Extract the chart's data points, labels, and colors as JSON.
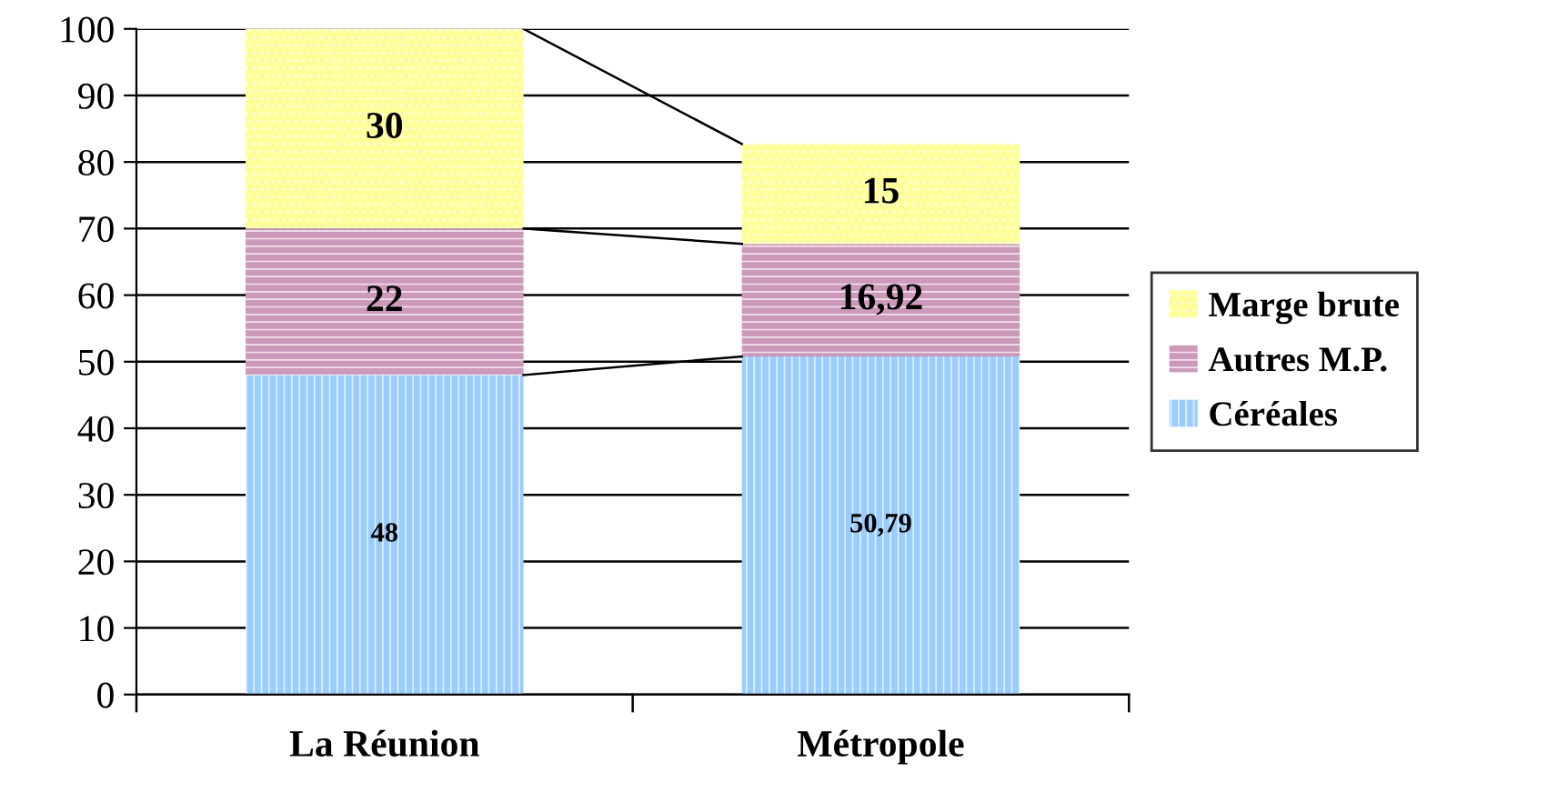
{
  "chart_data": {
    "type": "bar",
    "stacked": true,
    "categories": [
      "La Réunion",
      "Métropole"
    ],
    "series": [
      {
        "name": "Céréales",
        "color": "#99ccff",
        "values": [
          48,
          50.79
        ],
        "value_labels": [
          "48",
          "50,79"
        ]
      },
      {
        "name": "Autres M.P.",
        "color": "#cc99bb",
        "values": [
          22,
          16.92
        ],
        "value_labels": [
          "22",
          "16,92"
        ]
      },
      {
        "name": "Marge brute",
        "color": "#ffff99",
        "values": [
          30,
          15
        ],
        "value_labels": [
          "30",
          "15"
        ]
      }
    ],
    "ylim": [
      0,
      100
    ],
    "yticks": [
      0,
      10,
      20,
      30,
      40,
      50,
      60,
      70,
      80,
      90,
      100
    ],
    "grid": "y",
    "legend": "right"
  }
}
